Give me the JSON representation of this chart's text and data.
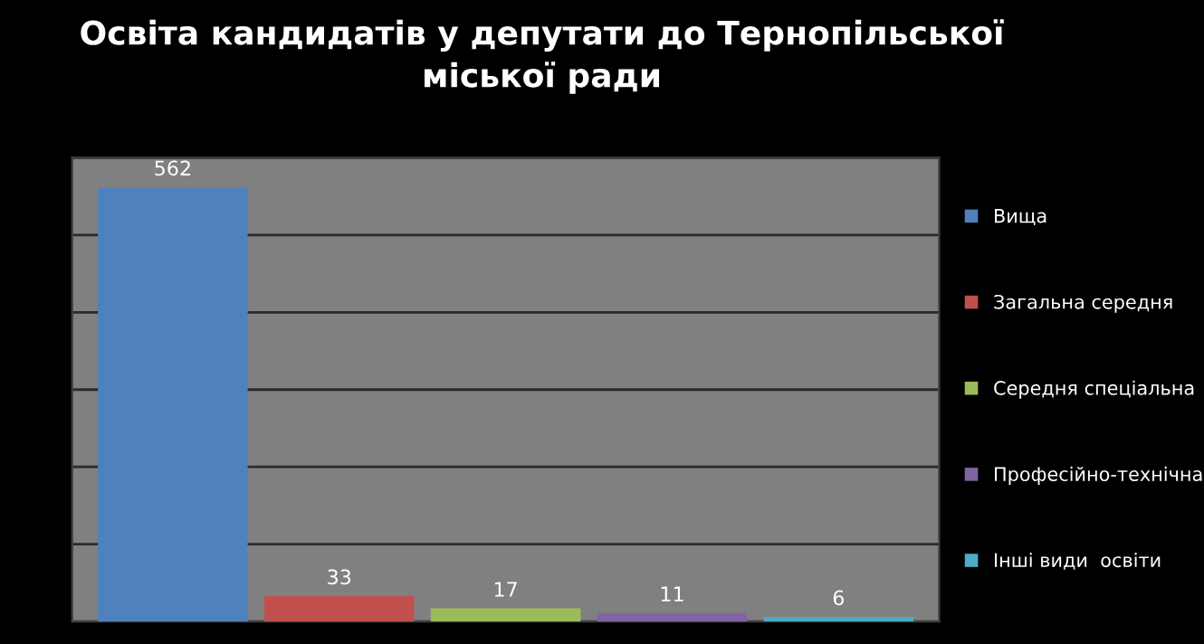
{
  "chart_data": {
    "type": "bar",
    "title": "Освіта кандидатів у депутати до Тернопільської\nміської ради",
    "categories": [
      null
    ],
    "series": [
      {
        "name": "Вища",
        "color": "#4f81bd",
        "values": [
          562
        ]
      },
      {
        "name": "Загальна середня",
        "color": "#c0504d",
        "values": [
          33
        ]
      },
      {
        "name": "Середня спеціальна",
        "color": "#9bbb59",
        "values": [
          17
        ]
      },
      {
        "name": "Професійно-технічна",
        "color": "#8064a2",
        "values": [
          11
        ]
      },
      {
        "name": "Інші види  освіти",
        "color": "#4bacc6",
        "values": [
          6
        ]
      }
    ],
    "ylim": [
      0,
      600
    ],
    "yticks": [
      {
        "value": 0,
        "label": null
      },
      {
        "value": 100,
        "label": null
      },
      {
        "value": 200,
        "label": null
      },
      {
        "value": 300,
        "label": null
      },
      {
        "value": 400,
        "label": null
      },
      {
        "value": 500,
        "label": null
      },
      {
        "value": 600,
        "label": null
      }
    ],
    "grid": "y",
    "legend": "right",
    "data_labels": true
  }
}
